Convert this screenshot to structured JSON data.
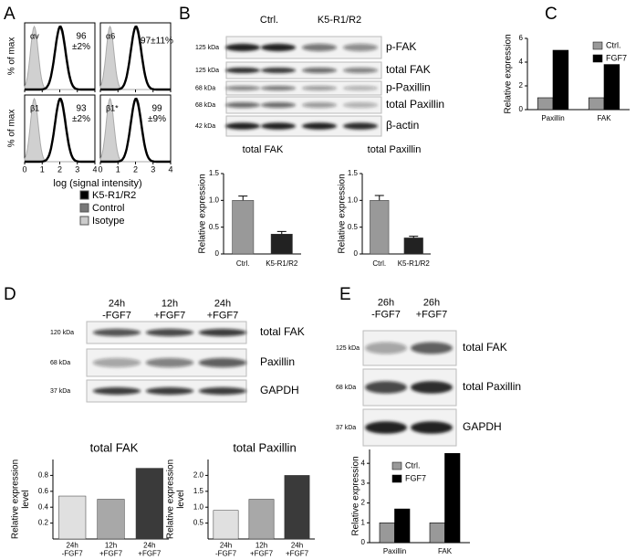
{
  "panel_labels": [
    "A",
    "B",
    "C",
    "D",
    "E"
  ],
  "flow": {
    "panels": [
      {
        "marker": "αv",
        "stat": "96\n±2%"
      },
      {
        "marker": "α6",
        "stat": "97±11%"
      },
      {
        "marker": "β1",
        "stat": "93\n±2%"
      },
      {
        "marker": "β1*",
        "stat": "99\n±9%"
      }
    ],
    "y_label": "% of max",
    "x_label": "log (signal intensity)",
    "x_tick_labels": [
      "0",
      "1",
      "2",
      "3",
      "4"
    ],
    "legend": [
      "K5-R1/R2",
      "Control",
      "Isotype"
    ]
  },
  "blot_b": {
    "lanes": [
      "Ctrl.",
      "K5-R1/R2"
    ],
    "rows": [
      {
        "kda": "125 kDa",
        "label": "p-FAK"
      },
      {
        "kda": "125 kDa",
        "label": "total FAK"
      },
      {
        "kda": "68 kDa",
        "label": "p-Paxillin"
      },
      {
        "kda": "68 kDa",
        "label": "total Paxillin"
      },
      {
        "kda": "42 kDa",
        "label": "β-actin"
      }
    ]
  },
  "blot_d": {
    "lanes": [
      "24h\n-FGF7",
      "12h\n+FGF7",
      "24h\n+FGF7"
    ],
    "rows": [
      {
        "kda": "120 kDa",
        "label": "total FAK"
      },
      {
        "kda": "68 kDa",
        "label": "Paxillin"
      },
      {
        "kda": "37 kDa",
        "label": "GAPDH"
      }
    ]
  },
  "blot_e": {
    "lanes": [
      "26h\n-FGF7",
      "26h\n+FGF7"
    ],
    "rows": [
      {
        "kda": "125 kDa",
        "label": "total FAK"
      },
      {
        "kda": "68 kDa",
        "label": "total Paxillin"
      },
      {
        "kda": "37 kDa",
        "label": "GAPDH"
      }
    ]
  },
  "chart_data": [
    {
      "type": "bar",
      "title": "total FAK",
      "y_label": "Relative expression",
      "categories": [
        "Ctrl.",
        "K5-R1/R2"
      ],
      "values": [
        1.0,
        0.37
      ],
      "errors": [
        0.08,
        0.05
      ],
      "colors": [
        "#999999",
        "#222222"
      ],
      "ylim": [
        0,
        1.5
      ],
      "yticks": [
        0,
        0.5,
        {
          "value": 1,
          "label": "1.0"
        },
        1.5
      ]
    },
    {
      "type": "bar",
      "title": "total Paxillin",
      "y_label": "Relative expression",
      "categories": [
        "Ctrl.",
        "K5-R1/R2"
      ],
      "values": [
        1.0,
        0.3
      ],
      "errors": [
        0.09,
        0.03
      ],
      "colors": [
        "#999999",
        "#222222"
      ],
      "ylim": [
        0,
        1.5
      ],
      "yticks": [
        0,
        0.5,
        {
          "value": 1,
          "label": "1.0"
        },
        1.5
      ]
    },
    {
      "type": "grouped",
      "y_label": "Relative expression",
      "categories": [
        "Paxillin",
        "FAK"
      ],
      "series": [
        {
          "name": "Ctrl.",
          "color": "#999999",
          "values": [
            1,
            1
          ]
        },
        {
          "name": "FGF7",
          "color": "#000000",
          "values": [
            5,
            3.8
          ]
        }
      ],
      "ylim": [
        0,
        6
      ],
      "yticks": [
        0,
        2,
        4,
        6
      ]
    },
    {
      "type": "bar",
      "title": "total FAK",
      "y_label": "Relative expression\nlevel",
      "categories": [
        "24h\n-FGF7",
        "12h\n+FGF7",
        "24h\n+FGF7"
      ],
      "values": [
        0.54,
        0.5,
        0.89
      ],
      "colors": [
        "#e0e0e0",
        "#a8a8a8",
        "#3a3a3a"
      ],
      "ylim": [
        0,
        1
      ],
      "yticks": [
        0.2,
        0.4,
        0.6,
        0.8
      ]
    },
    {
      "type": "bar",
      "title": "total Paxillin",
      "y_label": "Relative expression\nlevel",
      "categories": [
        "24h\n-FGF7",
        "12h\n+FGF7",
        "24h\n+FGF7"
      ],
      "values": [
        0.9,
        1.25,
        2.0
      ],
      "colors": [
        "#e0e0e0",
        "#a8a8a8",
        "#3a3a3a"
      ],
      "ylim": [
        0,
        2.5
      ],
      "yticks": [
        0.5,
        {
          "value": 1,
          "label": "1.0"
        },
        1.5,
        {
          "value": 2,
          "label": "2.0"
        }
      ]
    },
    {
      "type": "grouped",
      "y_label": "Relative expression",
      "categories": [
        "Paxillin",
        "FAK"
      ],
      "series": [
        {
          "name": "Ctrl.",
          "color": "#999999",
          "values": [
            1,
            1
          ]
        },
        {
          "name": "FGF7",
          "color": "#000000",
          "values": [
            1.7,
            4.5
          ]
        }
      ],
      "ylim": [
        0,
        4.7
      ],
      "yticks": [
        0,
        1,
        2,
        3,
        4
      ]
    }
  ]
}
